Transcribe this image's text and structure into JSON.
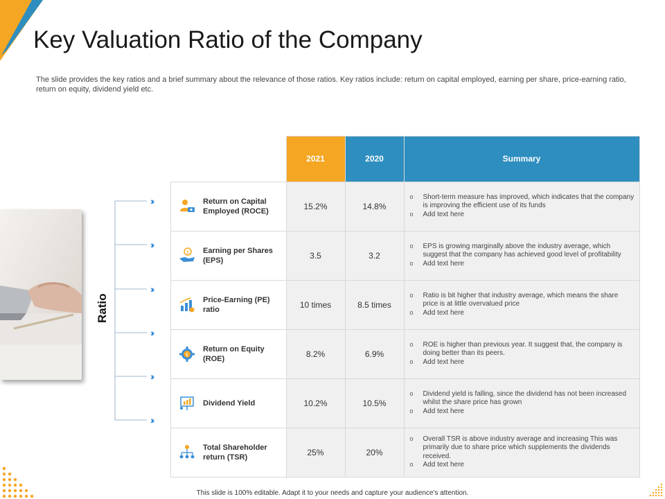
{
  "header": {
    "title": "Key Valuation Ratio of the Company",
    "subtitle": "The slide provides the key ratios and a brief summary about the relevance of those ratios. Key ratios include: return on capital employed, earning per share, price-earning ratio, return on equity, dividend yield etc."
  },
  "side_label": "Ratio",
  "colors": {
    "orange": "#f5a623",
    "blue": "#2e8ebf",
    "row_bg": "#f0f0f0"
  },
  "table": {
    "headers": {
      "y2021": "2021",
      "y2020": "2020",
      "summary": "Summary"
    },
    "rows": [
      {
        "icon": "person-money-icon",
        "name": "Return on Capital Employed (ROCE)",
        "v2021": "15.2%",
        "v2020": "14.8%",
        "summary": [
          "Short-term measure has improved, which indicates that the company is improving the efficient use of its funds",
          "Add text here"
        ]
      },
      {
        "icon": "hand-coin-icon",
        "name": "Earning per Shares (EPS)",
        "v2021": "3.5",
        "v2020": "3.2",
        "summary": [
          "EPS is growing marginally above the industry average, which suggest that the company has achieved good level of profitability",
          "Add text here"
        ]
      },
      {
        "icon": "bar-chart-coin-icon",
        "name": "Price-Earning (PE) ratio",
        "v2021": "10 times",
        "v2020": "8.5 times",
        "summary": [
          "Ratio is bit higher that industry average, which means the share price is at little overvalued price",
          "Add text here"
        ]
      },
      {
        "icon": "gear-dollar-icon",
        "name": "Return on Equity (ROE)",
        "v2021": "8.2%",
        "v2020": "6.9%",
        "summary": [
          "ROE is higher than previous year. It suggest that, the company is doing better than its peers.",
          "Add text here"
        ]
      },
      {
        "icon": "presentation-board-icon",
        "name": "Dividend Yield",
        "v2021": "10.2%",
        "v2020": "10.5%",
        "summary": [
          "Dividend yield is falling, since the dividend has not been increased whilst the share price has grown",
          "Add text here"
        ]
      },
      {
        "icon": "org-chart-icon",
        "name": "Total Shareholder return (TSR)",
        "v2021": "25%",
        "v2020": "20%",
        "summary": [
          "Overall TSR is above industry average and increasing This was primarily due to share price which supplements the dividends received.",
          "Add text here"
        ]
      }
    ]
  },
  "footer": "This slide is 100% editable. Adapt it to your needs and capture your audience's attention."
}
